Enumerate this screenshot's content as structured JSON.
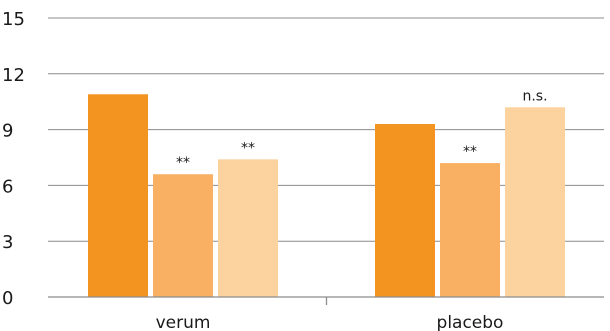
{
  "chart_data": {
    "type": "bar",
    "categories": [
      "verum",
      "placebo"
    ],
    "series": [
      {
        "values": [
          10.9,
          9.3
        ],
        "color": "#f39320"
      },
      {
        "values": [
          6.6,
          7.2
        ],
        "color": "#f9b063"
      },
      {
        "values": [
          7.4,
          10.2
        ],
        "color": "#fcd29f"
      }
    ],
    "annotations": [
      [
        "",
        ""
      ],
      [
        "**",
        "**"
      ],
      [
        "**",
        "n.s."
      ]
    ],
    "yticks": [
      0,
      3,
      6,
      9,
      12,
      15
    ],
    "ylim": [
      0,
      15
    ],
    "grid": true,
    "title": "",
    "xlabel": "",
    "ylabel": ""
  }
}
